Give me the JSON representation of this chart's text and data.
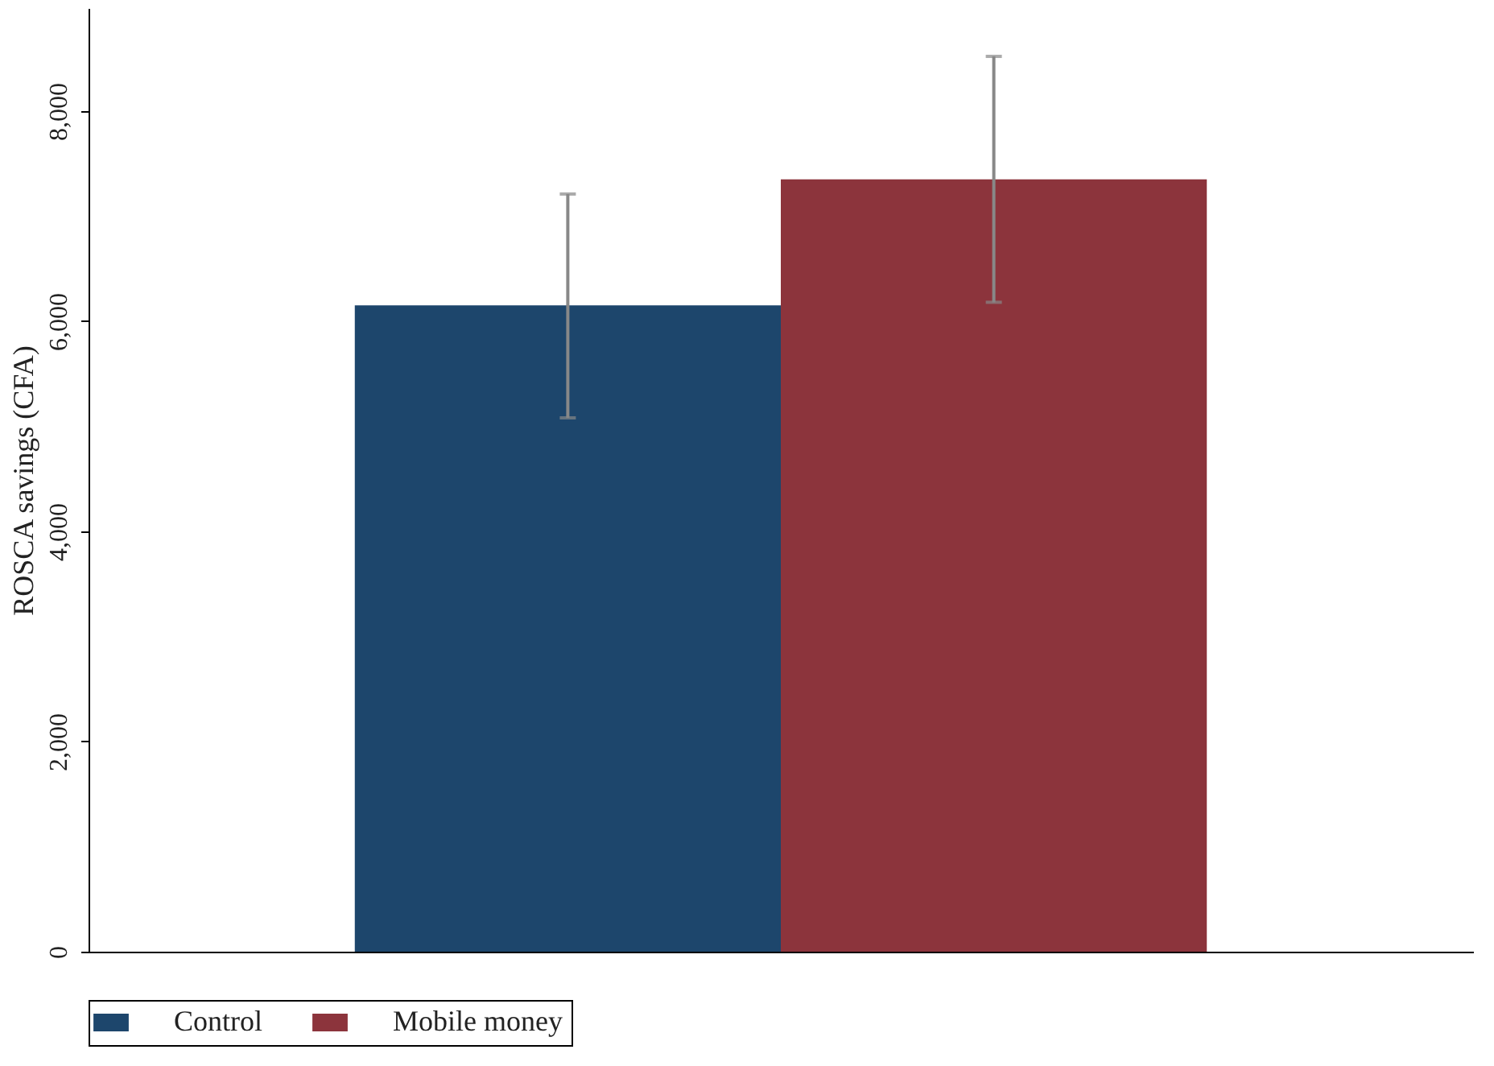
{
  "chart_data": {
    "type": "bar",
    "ylabel": "ROSCA savings (CFA)",
    "categories": [
      null
    ],
    "series": [
      {
        "name": "Control",
        "color": "#1d466c",
        "values": [
          6150
        ],
        "errors": [
          [
            5080,
            7210
          ]
        ]
      },
      {
        "name": "Mobile money",
        "color": "#8c343c",
        "values": [
          7350
        ],
        "errors": [
          [
            6180,
            8520
          ]
        ]
      }
    ],
    "ylim": [
      0,
      8980
    ],
    "yticks": [
      0,
      {
        "value": 2000,
        "label": "2,000"
      },
      {
        "value": 4000,
        "label": "4,000"
      },
      {
        "value": 6000,
        "label": "6,000"
      },
      {
        "value": 8000,
        "label": "8,000"
      }
    ],
    "grid": false,
    "legend": "bottom",
    "tick_labels": "y"
  }
}
